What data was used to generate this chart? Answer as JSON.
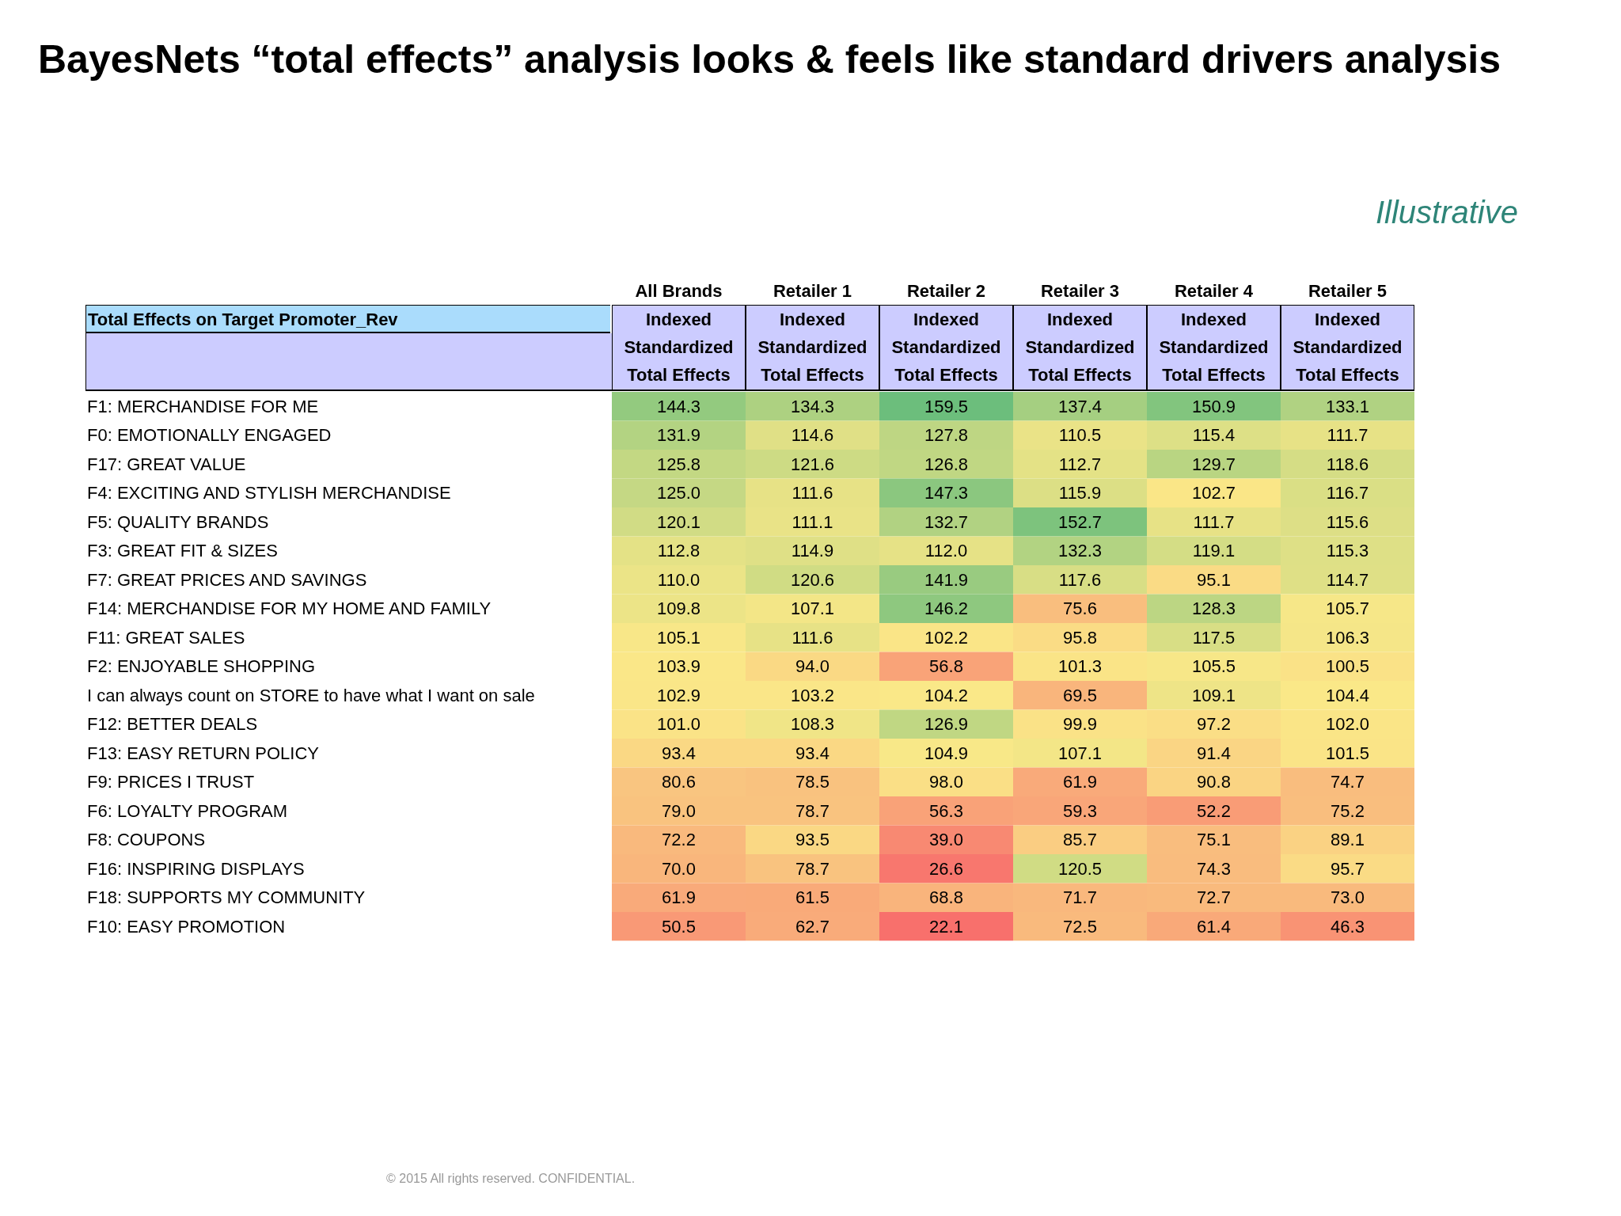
{
  "chart_data": {
    "type": "heatmap",
    "title": "BayesNets “total effects” analysis looks & feels like standard drivers analysis",
    "data_labels": true,
    "cell_labels": [
      [
        "144.3",
        "134.3",
        "159.5",
        "137.4",
        "150.9",
        "133.1"
      ],
      [
        "131.9",
        "114.6",
        "127.8",
        "110.5",
        "115.4",
        "111.7"
      ],
      [
        "125.8",
        "121.6",
        "126.8",
        "112.7",
        "129.7",
        "118.6"
      ],
      [
        "125.0",
        "111.6",
        "147.3",
        "115.9",
        "102.7",
        "116.7"
      ],
      [
        "120.1",
        "111.1",
        "132.7",
        "152.7",
        "111.7",
        "115.6"
      ],
      [
        "112.8",
        "114.9",
        "112.0",
        "132.3",
        "119.1",
        "115.3"
      ],
      [
        "110.0",
        "120.6",
        "141.9",
        "117.6",
        "95.1",
        "114.7"
      ],
      [
        "109.8",
        "107.1",
        "146.2",
        "75.6",
        "128.3",
        "105.7"
      ],
      [
        "105.1",
        "111.6",
        "102.2",
        "95.8",
        "117.5",
        "106.3"
      ],
      [
        "103.9",
        "94.0",
        "56.8",
        "101.3",
        "105.5",
        "100.5"
      ],
      [
        "102.9",
        "103.2",
        "104.2",
        "69.5",
        "109.1",
        "104.4"
      ],
      [
        "101.0",
        "108.3",
        "126.9",
        "99.9",
        "97.2",
        "102.0"
      ],
      [
        "93.4",
        "93.4",
        "104.9",
        "107.1",
        "91.4",
        "101.5"
      ],
      [
        "80.6",
        "78.5",
        "98.0",
        "61.9",
        "90.8",
        "74.7"
      ],
      [
        "79.0",
        "78.7",
        "56.3",
        "59.3",
        "52.2",
        "75.2"
      ],
      [
        "72.2",
        "93.5",
        "39.0",
        "85.7",
        "75.1",
        "89.1"
      ],
      [
        "70.0",
        "78.7",
        "26.6",
        "120.5",
        "74.3",
        "95.7"
      ],
      [
        "61.9",
        "61.5",
        "68.8",
        "71.7",
        "72.7",
        "73.0"
      ],
      [
        "50.5",
        "62.7",
        "22.1",
        "72.5",
        "61.4",
        "46.3"
      ]
    ],
    "xlabel": "Indexed Standardized Total Effects",
    "ylabel": "Total Effects on Target Promoter_Rev",
    "annotations": [
      "Illustrative",
      "© 2015 All rights reserved. CONFIDENTIAL."
    ],
    "categories": [
      "All Brands",
      "Retailer 1",
      "Retailer 2",
      "Retailer 3",
      "Retailer 4",
      "Retailer 5"
    ],
    "y_categories": [
      "F1: MERCHANDISE FOR ME",
      "F0: EMOTIONALLY ENGAGED",
      "F17: GREAT VALUE",
      "F4: EXCITING AND STYLISH MERCHANDISE",
      "F5: QUALITY BRANDS",
      "F3: GREAT FIT & SIZES",
      "F7: GREAT PRICES AND SAVINGS",
      "F14: MERCHANDISE FOR MY HOME AND FAMILY",
      "F11: GREAT SALES",
      "F2: ENJOYABLE SHOPPING",
      "I can always count on STORE to have what I want on sale",
      "F12: BETTER DEALS",
      "F13: EASY RETURN POLICY",
      "F9: PRICES I TRUST",
      "F6: LOYALTY PROGRAM",
      "F8: COUPONS",
      "F16: INSPIRING DISPLAYS",
      "F18: SUPPORTS MY COMMUNITY",
      "F10: EASY PROMOTION"
    ],
    "cells": [
      [
        144.3,
        134.3,
        159.5,
        137.4,
        150.9,
        133.1
      ],
      [
        131.9,
        114.6,
        127.8,
        110.5,
        115.4,
        111.7
      ],
      [
        125.8,
        121.6,
        126.8,
        112.7,
        129.7,
        118.6
      ],
      [
        125.0,
        111.6,
        147.3,
        115.9,
        102.7,
        116.7
      ],
      [
        120.1,
        111.1,
        132.7,
        152.7,
        111.7,
        115.6
      ],
      [
        112.8,
        114.9,
        112.0,
        132.3,
        119.1,
        115.3
      ],
      [
        110.0,
        120.6,
        141.9,
        117.6,
        95.1,
        114.7
      ],
      [
        109.8,
        107.1,
        146.2,
        75.6,
        128.3,
        105.7
      ],
      [
        105.1,
        111.6,
        102.2,
        95.8,
        117.5,
        106.3
      ],
      [
        103.9,
        94.0,
        56.8,
        101.3,
        105.5,
        100.5
      ],
      [
        102.9,
        103.2,
        104.2,
        69.5,
        109.1,
        104.4
      ],
      [
        101.0,
        108.3,
        126.9,
        99.9,
        97.2,
        102.0
      ],
      [
        93.4,
        93.4,
        104.9,
        107.1,
        91.4,
        101.5
      ],
      [
        80.6,
        78.5,
        98.0,
        61.9,
        90.8,
        74.7
      ],
      [
        79.0,
        78.7,
        56.3,
        59.3,
        52.2,
        75.2
      ],
      [
        72.2,
        93.5,
        39.0,
        85.7,
        75.1,
        89.1
      ],
      [
        70.0,
        78.7,
        26.6,
        120.5,
        74.3,
        95.7
      ],
      [
        61.9,
        61.5,
        68.8,
        71.7,
        72.7,
        73.0
      ],
      [
        50.5,
        62.7,
        22.1,
        72.5,
        61.4,
        46.3
      ]
    ]
  }
}
